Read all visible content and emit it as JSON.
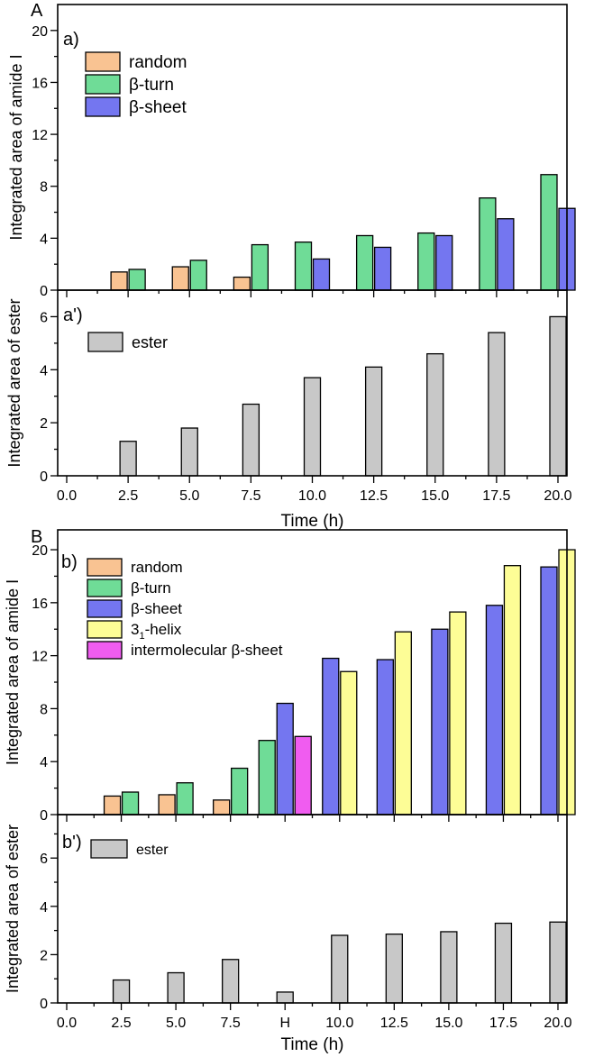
{
  "colors": {
    "random": "#f9c392",
    "beta_turn": "#6fdc97",
    "beta_sheet": "#7476f0",
    "helix": "#fdfd96",
    "intermolecular": "#f05cf0",
    "ester": "#c8c8c8"
  },
  "chart_data": [
    {
      "id": "A",
      "panel_letter": "A",
      "type": "bar",
      "x_ticks": [
        "0.0",
        "2.5",
        "5.0",
        "7.5",
        "10.0",
        "12.5",
        "15.0",
        "17.5",
        "20.0"
      ],
      "xlabel": "Time (h)",
      "subplots": [
        {
          "id": "a",
          "label": "a)",
          "ylabel": "Integrated area of amide I",
          "ylim": [
            0,
            22
          ],
          "y_ticks": [
            0,
            4,
            8,
            12,
            16,
            20
          ],
          "legend": [
            {
              "key": "random",
              "name": "random"
            },
            {
              "key": "beta_turn",
              "name": "β-turn"
            },
            {
              "key": "beta_sheet",
              "name": "β-sheet"
            }
          ],
          "series": [
            {
              "key": "random",
              "name": "random",
              "values": [
                null,
                1.4,
                1.8,
                1.0,
                null,
                null,
                null,
                null,
                null
              ]
            },
            {
              "key": "beta_turn",
              "name": "β-turn",
              "values": [
                null,
                1.6,
                2.3,
                3.5,
                3.7,
                4.2,
                4.4,
                7.1,
                8.9
              ]
            },
            {
              "key": "beta_sheet",
              "name": "β-sheet",
              "values": [
                null,
                null,
                null,
                null,
                2.4,
                3.3,
                4.2,
                5.5,
                6.3
              ]
            }
          ]
        },
        {
          "id": "a2",
          "label": "a')",
          "ylabel": "Integrated area of ester",
          "ylim": [
            0,
            7
          ],
          "y_ticks": [
            0,
            2,
            4,
            6
          ],
          "legend": [
            {
              "key": "ester",
              "name": "ester"
            }
          ],
          "series": [
            {
              "key": "ester",
              "name": "ester",
              "values": [
                null,
                1.3,
                1.8,
                2.7,
                3.7,
                4.1,
                4.6,
                5.4,
                6.0
              ]
            }
          ]
        }
      ]
    },
    {
      "id": "B",
      "panel_letter": "B",
      "type": "bar",
      "x_ticks": [
        "0.0",
        "2.5",
        "5.0",
        "7.5",
        "H",
        "10.0",
        "12.5",
        "15.0",
        "17.5",
        "20.0"
      ],
      "xlabel": "Time (h)",
      "subplots": [
        {
          "id": "b",
          "label": "b)",
          "ylabel": "Integrated area of amide I",
          "ylim": [
            0,
            21.5
          ],
          "y_ticks": [
            0,
            4,
            8,
            12,
            16,
            20
          ],
          "legend": [
            {
              "key": "random",
              "name": "random"
            },
            {
              "key": "beta_turn",
              "name": "β-turn"
            },
            {
              "key": "beta_sheet",
              "name": "β-sheet"
            },
            {
              "key": "helix",
              "name": "3",
              "sub": "1",
              "suffix": "-helix"
            },
            {
              "key": "intermolecular",
              "name": "intermolecular β-sheet"
            }
          ],
          "series": [
            {
              "key": "random",
              "name": "random",
              "values": [
                null,
                1.4,
                1.5,
                1.1,
                null,
                null,
                null,
                null,
                null,
                null
              ]
            },
            {
              "key": "beta_turn",
              "name": "β-turn",
              "values": [
                null,
                1.7,
                2.4,
                3.5,
                5.6,
                null,
                null,
                null,
                null,
                null
              ]
            },
            {
              "key": "beta_sheet",
              "name": "β-sheet",
              "values": [
                null,
                null,
                null,
                null,
                8.4,
                11.8,
                11.7,
                14.0,
                15.8,
                18.7
              ]
            },
            {
              "key": "helix",
              "name": "3₁-helix",
              "values": [
                null,
                null,
                null,
                null,
                null,
                10.8,
                13.8,
                15.3,
                18.8,
                20.0
              ]
            },
            {
              "key": "intermolecular",
              "name": "intermolecular β-sheet",
              "values": [
                null,
                null,
                null,
                null,
                5.9,
                null,
                null,
                null,
                null,
                null
              ]
            }
          ]
        },
        {
          "id": "b2",
          "label": "b')",
          "ylabel": "Integrated area of ester",
          "ylim": [
            0,
            7.8
          ],
          "y_ticks": [
            0,
            2,
            4,
            6
          ],
          "legend": [
            {
              "key": "ester",
              "name": "ester"
            }
          ],
          "series": [
            {
              "key": "ester",
              "name": "ester",
              "values": [
                null,
                0.95,
                1.25,
                1.8,
                0.45,
                2.8,
                2.85,
                2.95,
                3.3,
                3.35
              ]
            }
          ]
        }
      ]
    }
  ]
}
